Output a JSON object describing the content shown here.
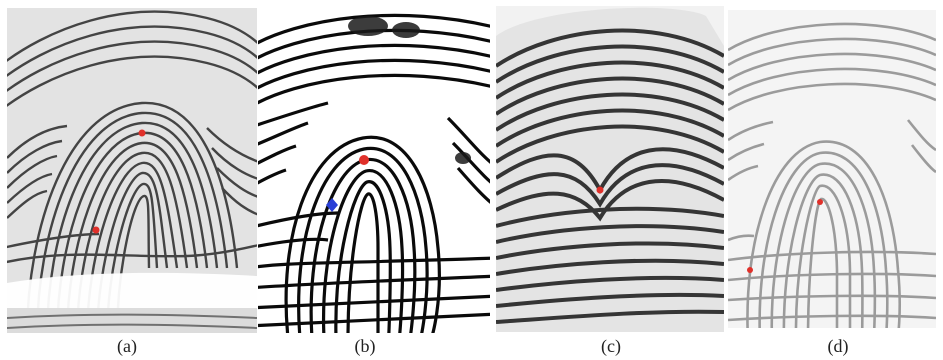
{
  "figure": {
    "panels": [
      {
        "id": "a",
        "caption": "(a)",
        "description_markers": [
          "core-point",
          "delta-point"
        ],
        "ink_color": "#2a2a2a",
        "background_color": "#e6e6e6",
        "marker_colors": [
          "#e0302a",
          "#e0302a"
        ]
      },
      {
        "id": "b",
        "caption": "(b)",
        "description_markers": [
          "core-point",
          "delta-point"
        ],
        "ink_color": "#0a0a0a",
        "background_color": "#ffffff",
        "marker_colors": [
          "#e0302a",
          "#2a3fd6"
        ]
      },
      {
        "id": "c",
        "caption": "(c)",
        "description_markers": [
          "core-point"
        ],
        "ink_color": "#1e1e1e",
        "background_color": "#f2f2f2",
        "marker_colors": [
          "#e0302a"
        ]
      },
      {
        "id": "d",
        "caption": "(d)",
        "description_markers": [
          "core-point",
          "delta-point"
        ],
        "ink_color": "#8a8a8a",
        "background_color": "#f4f4f4",
        "marker_colors": [
          "#e0302a",
          "#e0302a"
        ]
      }
    ]
  }
}
